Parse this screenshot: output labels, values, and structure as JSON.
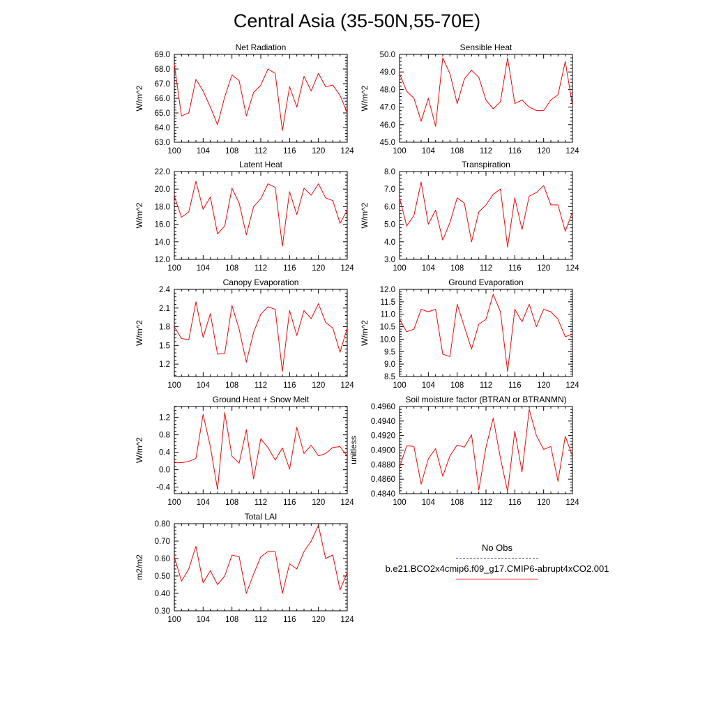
{
  "title": "Central Asia (35-50N,55-70E)",
  "colors": {
    "series": "#ff0000",
    "obs": "#3a3a8c",
    "axis": "#000000"
  },
  "legend": {
    "obs_label": "No Obs",
    "case_label": "b.e21.BCO2x4cmip6.f09_g17.CMIP6-abrupt4xCO2.001"
  },
  "chart_data": [
    {
      "type": "line",
      "title": "Net Radiation",
      "xlabel": "",
      "ylabel": "W/m^2",
      "xlim": [
        100,
        124
      ],
      "ylim": [
        63,
        69
      ],
      "xticks": [
        100,
        104,
        108,
        112,
        116,
        120,
        124
      ],
      "yticks": [
        63.0,
        64.0,
        65.0,
        66.0,
        67.0,
        68.0,
        69.0
      ],
      "ydec": 1,
      "series": [
        {
          "x": [
            100,
            101,
            102,
            103,
            104,
            105,
            106,
            107,
            108,
            109,
            110,
            111,
            112,
            113,
            114,
            115,
            116,
            117,
            118,
            119,
            120,
            121,
            122,
            123,
            124
          ],
          "values": [
            68.3,
            64.8,
            65.0,
            67.3,
            66.5,
            65.4,
            64.2,
            66.1,
            67.6,
            67.2,
            64.8,
            66.4,
            66.9,
            68.0,
            67.7,
            63.8,
            66.8,
            65.4,
            67.5,
            66.5,
            67.7,
            66.8,
            66.9,
            66.2,
            65.0
          ]
        }
      ]
    },
    {
      "type": "line",
      "title": "Sensible Heat",
      "xlabel": "",
      "ylabel": "W/m^2",
      "xlim": [
        100,
        124
      ],
      "ylim": [
        45,
        50
      ],
      "xticks": [
        100,
        104,
        108,
        112,
        116,
        120,
        124
      ],
      "yticks": [
        45.0,
        46.0,
        47.0,
        48.0,
        49.0,
        50.0
      ],
      "ydec": 1,
      "series": [
        {
          "x": [
            100,
            101,
            102,
            103,
            104,
            105,
            106,
            107,
            108,
            109,
            110,
            111,
            112,
            113,
            114,
            115,
            116,
            117,
            118,
            119,
            120,
            121,
            122,
            123,
            124
          ],
          "values": [
            48.9,
            47.9,
            47.5,
            46.2,
            47.5,
            45.9,
            49.8,
            48.9,
            47.2,
            48.6,
            49.1,
            48.7,
            47.4,
            46.9,
            47.3,
            49.8,
            47.2,
            47.4,
            47.0,
            46.8,
            46.8,
            47.4,
            47.7,
            49.6,
            47.1
          ]
        }
      ]
    },
    {
      "type": "line",
      "title": "Latent Heat",
      "xlabel": "",
      "ylabel": "W/m^2",
      "xlim": [
        100,
        124
      ],
      "ylim": [
        12,
        22
      ],
      "xticks": [
        100,
        104,
        108,
        112,
        116,
        120,
        124
      ],
      "yticks": [
        12.0,
        14.0,
        16.0,
        18.0,
        20.0,
        22.0
      ],
      "ydec": 1,
      "series": [
        {
          "x": [
            100,
            101,
            102,
            103,
            104,
            105,
            106,
            107,
            108,
            109,
            110,
            111,
            112,
            113,
            114,
            115,
            116,
            117,
            118,
            119,
            120,
            121,
            122,
            123,
            124
          ],
          "values": [
            19.2,
            16.8,
            17.4,
            20.9,
            17.7,
            19.1,
            14.9,
            15.8,
            20.1,
            18.4,
            14.8,
            18.0,
            18.9,
            20.6,
            20.2,
            13.5,
            19.7,
            17.1,
            20.1,
            19.3,
            20.6,
            19.0,
            18.7,
            16.1,
            17.6
          ]
        }
      ]
    },
    {
      "type": "line",
      "title": "Transpiration",
      "xlabel": "",
      "ylabel": "W/m^2",
      "xlim": [
        100,
        124
      ],
      "ylim": [
        3,
        8
      ],
      "xticks": [
        100,
        104,
        108,
        112,
        116,
        120,
        124
      ],
      "yticks": [
        3.0,
        4.0,
        5.0,
        6.0,
        7.0,
        8.0
      ],
      "ydec": 1,
      "series": [
        {
          "x": [
            100,
            101,
            102,
            103,
            104,
            105,
            106,
            107,
            108,
            109,
            110,
            111,
            112,
            113,
            114,
            115,
            116,
            117,
            118,
            119,
            120,
            121,
            122,
            123,
            124
          ],
          "values": [
            6.5,
            4.9,
            5.5,
            7.4,
            5.0,
            5.8,
            4.1,
            5.1,
            6.5,
            6.2,
            4.0,
            5.7,
            6.1,
            6.7,
            7.0,
            3.7,
            6.5,
            4.7,
            6.6,
            6.8,
            7.2,
            6.1,
            6.1,
            4.6,
            5.7
          ]
        }
      ]
    },
    {
      "type": "line",
      "title": "Canopy Evaporation",
      "xlabel": "",
      "ylabel": "W/m^2",
      "xlim": [
        100,
        124
      ],
      "ylim": [
        1.0,
        2.4
      ],
      "xticks": [
        100,
        104,
        108,
        112,
        116,
        120,
        124
      ],
      "yticks": [
        1.2,
        1.5,
        1.8,
        2.1,
        2.4
      ],
      "ydec": 1,
      "series": [
        {
          "x": [
            100,
            101,
            102,
            103,
            104,
            105,
            106,
            107,
            108,
            109,
            110,
            111,
            112,
            113,
            114,
            115,
            116,
            117,
            118,
            119,
            120,
            121,
            122,
            123,
            124
          ],
          "values": [
            1.8,
            1.61,
            1.59,
            2.2,
            1.63,
            2.01,
            1.36,
            1.37,
            2.14,
            1.76,
            1.23,
            1.71,
            2.0,
            2.12,
            2.08,
            1.08,
            2.06,
            1.66,
            2.06,
            1.93,
            2.17,
            1.87,
            1.78,
            1.39,
            1.78
          ]
        }
      ]
    },
    {
      "type": "line",
      "title": "Ground Evaporation",
      "xlabel": "",
      "ylabel": "W/m^2",
      "xlim": [
        100,
        124
      ],
      "ylim": [
        8.5,
        12.0
      ],
      "xticks": [
        100,
        104,
        108,
        112,
        116,
        120,
        124
      ],
      "yticks": [
        8.5,
        9.0,
        9.5,
        10.0,
        10.5,
        11.0,
        11.5,
        12.0
      ],
      "ydec": 1,
      "series": [
        {
          "x": [
            100,
            101,
            102,
            103,
            104,
            105,
            106,
            107,
            108,
            109,
            110,
            111,
            112,
            113,
            114,
            115,
            116,
            117,
            118,
            119,
            120,
            121,
            122,
            123,
            124
          ],
          "values": [
            10.8,
            10.3,
            10.4,
            11.2,
            11.1,
            11.2,
            9.4,
            9.3,
            11.4,
            10.5,
            9.6,
            10.6,
            10.8,
            11.8,
            11.1,
            8.7,
            11.2,
            10.7,
            11.4,
            10.5,
            11.2,
            11.1,
            10.8,
            10.1,
            10.2
          ]
        }
      ]
    },
    {
      "type": "line",
      "title": "Ground Heat + Snow Melt",
      "xlabel": "",
      "ylabel": "W/m^2",
      "xlim": [
        100,
        124
      ],
      "ylim": [
        -0.55,
        1.45
      ],
      "xticks": [
        100,
        104,
        108,
        112,
        116,
        120,
        124
      ],
      "yticks": [
        -0.4,
        0.0,
        0.4,
        0.8,
        1.2
      ],
      "ydec": 1,
      "series": [
        {
          "x": [
            100,
            101,
            102,
            103,
            104,
            105,
            106,
            107,
            108,
            109,
            110,
            111,
            112,
            113,
            114,
            115,
            116,
            117,
            118,
            119,
            120,
            121,
            122,
            123,
            124
          ],
          "values": [
            0.17,
            0.16,
            0.19,
            0.26,
            1.27,
            0.53,
            -0.46,
            1.31,
            0.31,
            0.15,
            0.92,
            -0.21,
            0.71,
            0.51,
            0.22,
            0.5,
            0.01,
            0.97,
            0.37,
            0.56,
            0.32,
            0.37,
            0.51,
            0.53,
            0.31
          ]
        }
      ]
    },
    {
      "type": "line",
      "title": "Soil moisture factor (BTRAN or BTRANMN)",
      "xlabel": "",
      "ylabel": "unitless",
      "xlim": [
        100,
        124
      ],
      "ylim": [
        0.484,
        0.496
      ],
      "xticks": [
        100,
        104,
        108,
        112,
        116,
        120,
        124
      ],
      "yticks": [
        0.484,
        0.486,
        0.488,
        0.49,
        0.492,
        0.494,
        0.496
      ],
      "ydec": 4,
      "series": [
        {
          "x": [
            100,
            101,
            102,
            103,
            104,
            105,
            106,
            107,
            108,
            109,
            110,
            111,
            112,
            113,
            114,
            115,
            116,
            117,
            118,
            119,
            120,
            121,
            122,
            123,
            124
          ],
          "values": [
            0.4876,
            0.4906,
            0.4905,
            0.4853,
            0.4888,
            0.4902,
            0.4864,
            0.4892,
            0.4907,
            0.4904,
            0.4921,
            0.4845,
            0.4904,
            0.4944,
            0.4889,
            0.4843,
            0.4926,
            0.487,
            0.4956,
            0.492,
            0.4901,
            0.4905,
            0.4857,
            0.4919,
            0.4892
          ]
        }
      ]
    },
    {
      "type": "line",
      "title": "Total LAI",
      "xlabel": "",
      "ylabel": "m2/m2",
      "xlim": [
        100,
        124
      ],
      "ylim": [
        0.3,
        0.8
      ],
      "xticks": [
        100,
        104,
        108,
        112,
        116,
        120,
        124
      ],
      "yticks": [
        0.3,
        0.4,
        0.5,
        0.6,
        0.7,
        0.8
      ],
      "ydec": 2,
      "series": [
        {
          "x": [
            100,
            101,
            102,
            103,
            104,
            105,
            106,
            107,
            108,
            109,
            110,
            111,
            112,
            113,
            114,
            115,
            116,
            117,
            118,
            119,
            120,
            121,
            122,
            123,
            124
          ],
          "values": [
            0.61,
            0.47,
            0.54,
            0.67,
            0.46,
            0.53,
            0.45,
            0.5,
            0.62,
            0.61,
            0.4,
            0.51,
            0.61,
            0.64,
            0.64,
            0.4,
            0.57,
            0.54,
            0.64,
            0.7,
            0.79,
            0.6,
            0.62,
            0.42,
            0.52
          ]
        }
      ]
    }
  ]
}
